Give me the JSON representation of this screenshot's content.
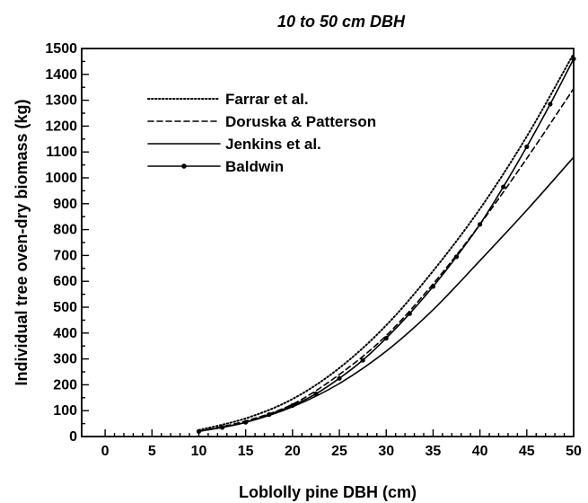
{
  "chart_data": {
    "type": "line",
    "title": "10 to 50 cm DBH",
    "xlabel": "Loblolly pine DBH (cm)",
    "ylabel": "Individual tree oven-dry biomass (kg)",
    "xlim": [
      -2.5,
      50
    ],
    "ylim": [
      0,
      1500
    ],
    "xticks": [
      0,
      5,
      10,
      15,
      20,
      25,
      30,
      35,
      40,
      45,
      50
    ],
    "yticks": [
      0,
      100,
      200,
      300,
      400,
      500,
      600,
      700,
      800,
      900,
      1000,
      1100,
      1200,
      1300,
      1400,
      1500
    ],
    "grid": false,
    "legend_position": "top-left",
    "series": [
      {
        "name": "Farrar et al.",
        "line_style": "dotted",
        "markers": false,
        "x": [
          10,
          15,
          20,
          25,
          30,
          35,
          40,
          45,
          50
        ],
        "y": [
          25,
          70,
          145,
          265,
          430,
          640,
          880,
          1160,
          1480
        ]
      },
      {
        "name": "Doruska & Patterson",
        "line_style": "dashed",
        "markers": false,
        "x": [
          10,
          15,
          20,
          25,
          30,
          35,
          40,
          45,
          50
        ],
        "y": [
          20,
          60,
          125,
          240,
          390,
          590,
          820,
          1075,
          1345
        ]
      },
      {
        "name": "Jenkins et al.",
        "line_style": "solid",
        "markers": false,
        "x": [
          10,
          15,
          20,
          25,
          30,
          35,
          40,
          45,
          50
        ],
        "y": [
          20,
          55,
          115,
          205,
          330,
          490,
          680,
          875,
          1080
        ]
      },
      {
        "name": "Baldwin",
        "line_style": "solid",
        "markers": true,
        "x": [
          10,
          12.5,
          15,
          17.5,
          20,
          22.5,
          25,
          27.5,
          30,
          32.5,
          35,
          37.5,
          40,
          42.5,
          45,
          47.5,
          50
        ],
        "y": [
          20,
          35,
          55,
          85,
          120,
          165,
          225,
          295,
          380,
          475,
          580,
          695,
          820,
          965,
          1120,
          1285,
          1460
        ]
      }
    ]
  }
}
